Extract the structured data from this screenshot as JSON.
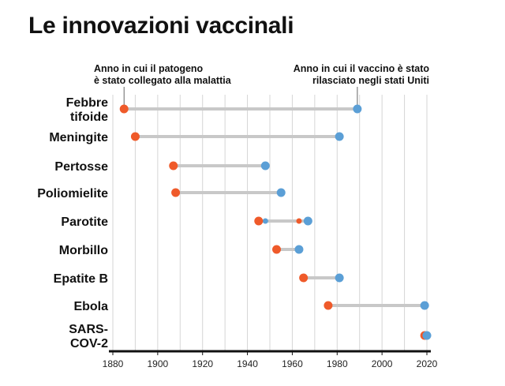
{
  "chart_data": {
    "type": "dumbbell",
    "title": "Le innovazioni vaccinali",
    "annotations": {
      "start": "Anno in cui il patogeno\nè stato collegato alla malattia",
      "end": "Anno in cui il vaccino è stato\nrilasciato negli stati Uniti"
    },
    "xlim": [
      1880,
      2020
    ],
    "xticks": [
      1880,
      1900,
      1920,
      1940,
      1960,
      1980,
      2000,
      2020
    ],
    "grid_step": 10,
    "colors": {
      "start": "#ef5a2a",
      "end": "#5b9fd6",
      "line": "#c8c8c8",
      "grid": "#d6d6d6"
    },
    "rows": [
      {
        "label": "Febbre\ntifoide",
        "start": 1885,
        "end": 1989
      },
      {
        "label": "Meningite",
        "start": 1890,
        "end": 1981
      },
      {
        "label": "Pertosse",
        "start": 1907,
        "end": 1948
      },
      {
        "label": "Poliomielite",
        "start": 1908,
        "end": 1955
      },
      {
        "label": "Parotite",
        "start": 1945,
        "end": 1967,
        "extra_end": 1948,
        "extra_start": 1963
      },
      {
        "label": "Morbillo",
        "start": 1953,
        "end": 1963
      },
      {
        "label": "Epatite B",
        "start": 1965,
        "end": 1981
      },
      {
        "label": "Ebola",
        "start": 1976,
        "end": 2019
      },
      {
        "label": "SARS-\nCOV-2",
        "start": 2019,
        "end": 2020
      }
    ]
  }
}
